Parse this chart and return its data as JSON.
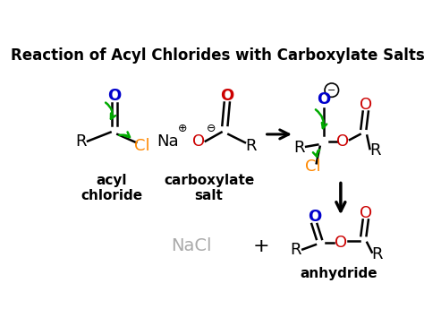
{
  "title": "Reaction of Acyl Chlorides with Carboxylate Salts",
  "bg_color": "#ffffff",
  "colors": {
    "black": "#000000",
    "red": "#cc0000",
    "blue": "#0000cc",
    "orange": "#ff8800",
    "green": "#00aa00",
    "gray": "#aaaaaa"
  },
  "labels": {
    "acyl_chloride": "acyl\nchloride",
    "carboxylate_salt": "carboxylate\nsalt",
    "nacl": "NaCl",
    "plus": "+",
    "anhydride": "anhydride"
  }
}
